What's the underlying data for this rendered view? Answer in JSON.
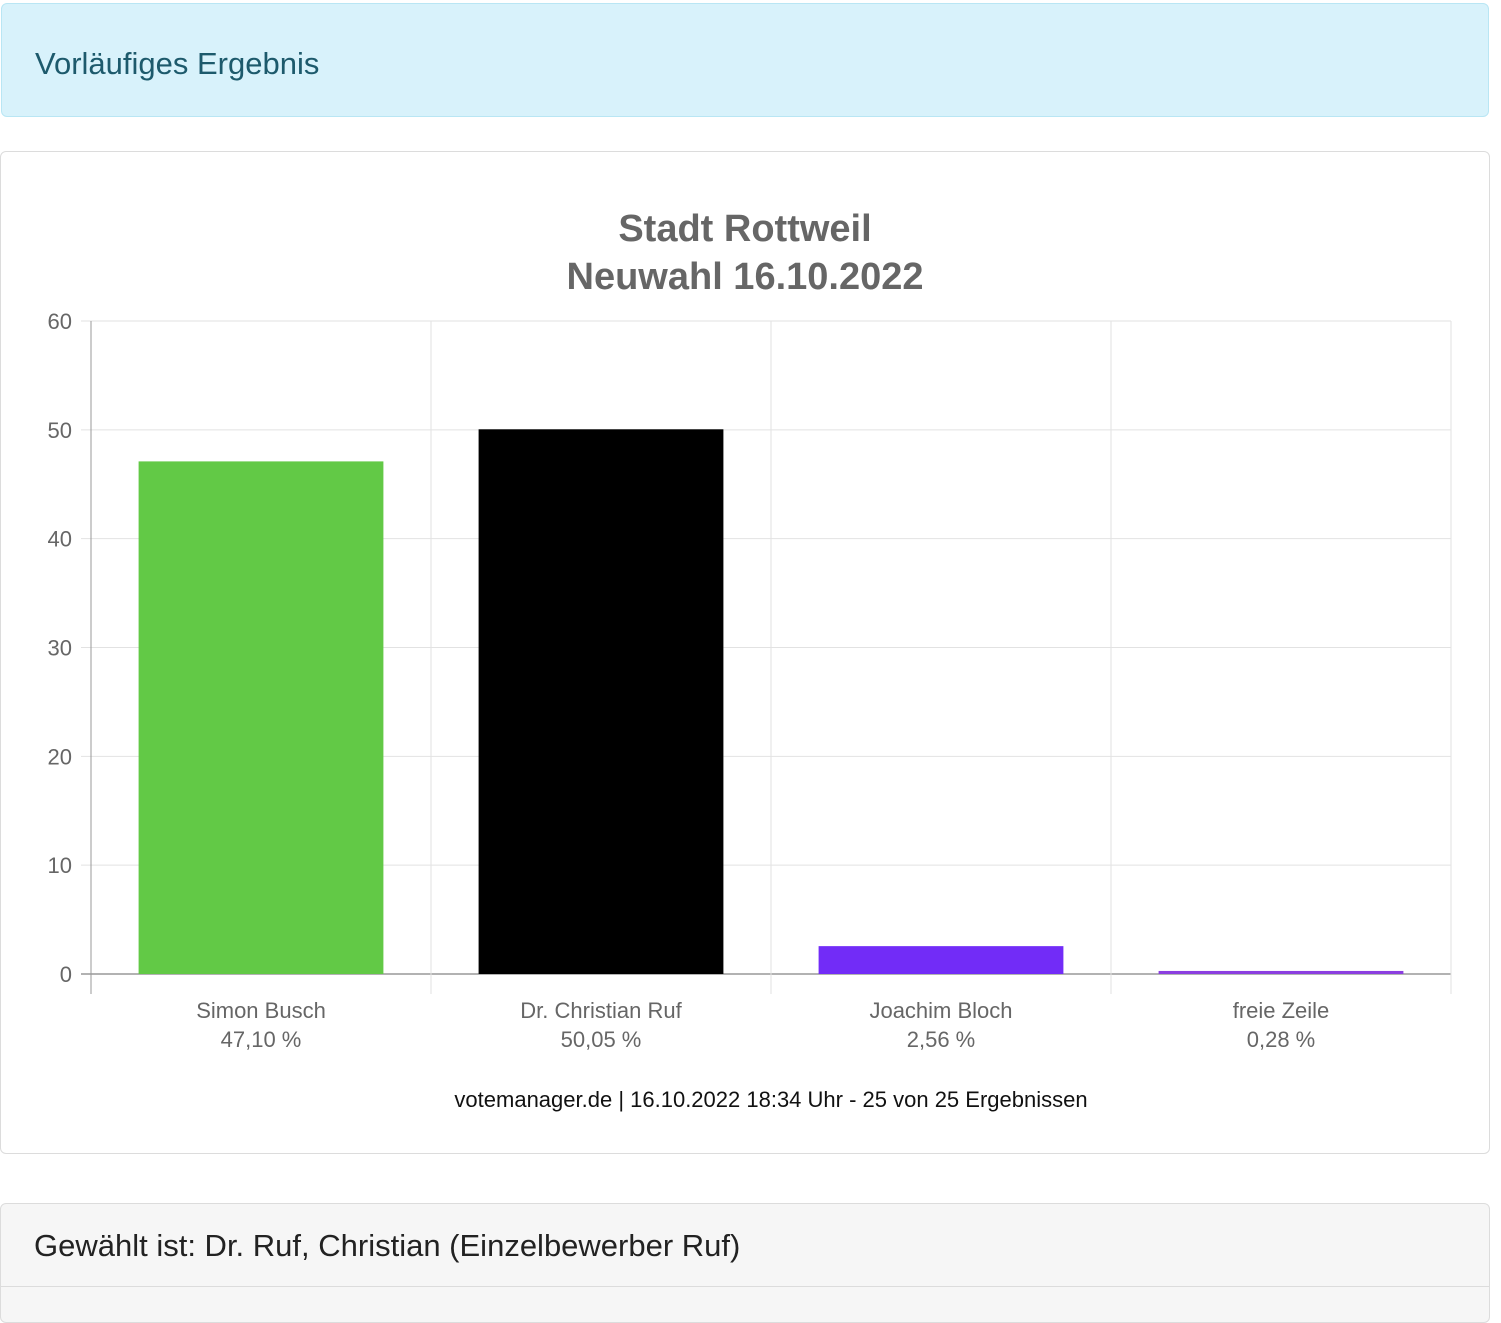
{
  "banner": {
    "text": "Vorläufiges Ergebnis"
  },
  "chart_data": {
    "type": "bar",
    "title": [
      "Stadt Rottweil",
      "Neuwahl 16.10.2022"
    ],
    "categories": [
      "Simon Busch",
      "Dr. Christian Ruf",
      "Joachim Bloch",
      "freie Zeile"
    ],
    "percent_labels": [
      "47,10 %",
      "50,05 %",
      "2,56 %",
      "0,28 %"
    ],
    "values": [
      47.1,
      50.05,
      2.56,
      0.28
    ],
    "colors": [
      "#62c946",
      "#000000",
      "#722cf7",
      "#8b3ee0"
    ],
    "ylim": [
      0,
      60
    ],
    "yticks": [
      0,
      10,
      20,
      30,
      40,
      50,
      60
    ],
    "grid": true,
    "xlabel": "",
    "ylabel": ""
  },
  "footer": {
    "source": "votemanager.de | 16.10.2022 18:34 Uhr - 25 von 25 Ergebnissen"
  },
  "result": {
    "text": "Gewählt ist: Dr. Ruf, Christian (Einzelbewerber Ruf)"
  }
}
